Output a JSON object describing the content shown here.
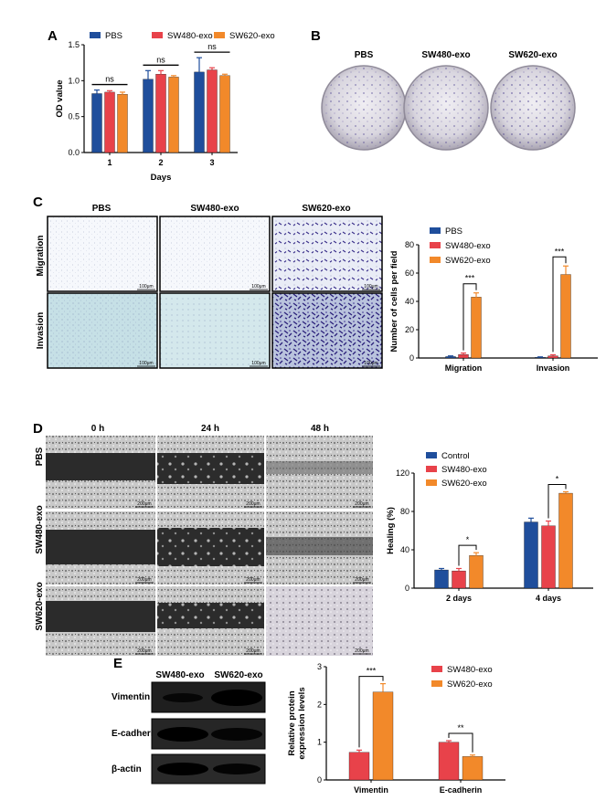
{
  "colors": {
    "blue": "#1f4e9c",
    "red": "#e8424a",
    "orange": "#f2892a",
    "ink": "#000000"
  },
  "panels": {
    "a": "A",
    "b": "B",
    "c": "C",
    "d": "D",
    "e": "E"
  },
  "chart_data": [
    {
      "panel": "A",
      "type": "bar",
      "categories": [
        "1",
        "2",
        "3"
      ],
      "series": [
        {
          "name": "PBS",
          "values": [
            0.82,
            1.02,
            1.12
          ],
          "err": [
            0.05,
            0.12,
            0.2
          ]
        },
        {
          "name": "SW480-exo",
          "values": [
            0.84,
            1.09,
            1.15
          ],
          "err": [
            0.02,
            0.05,
            0.03
          ]
        },
        {
          "name": "SW620-exo",
          "values": [
            0.81,
            1.05,
            1.07
          ],
          "err": [
            0.03,
            0.02,
            0.02
          ]
        }
      ],
      "xlabel": "Days",
      "ylabel": "OD value",
      "ylim": [
        0,
        1.5
      ],
      "yticks": [
        "0.0",
        "0.5",
        "1.0",
        "1.5"
      ],
      "sig": [
        "ns",
        "ns",
        "ns"
      ],
      "legend": "top"
    },
    {
      "panel": "C",
      "type": "bar",
      "categories": [
        "Migration",
        "Invasion"
      ],
      "series": [
        {
          "name": "PBS",
          "values": [
            1,
            0.5
          ],
          "err": [
            0.5,
            0.3
          ]
        },
        {
          "name": "SW480-exo",
          "values": [
            2.5,
            1.5
          ],
          "err": [
            1,
            0.8
          ]
        },
        {
          "name": "SW620-exo",
          "values": [
            43,
            59
          ],
          "err": [
            3,
            6
          ]
        }
      ],
      "ylabel": "Number of cells per field",
      "ylim": [
        0,
        80
      ],
      "yticks": [
        "0",
        "20",
        "40",
        "60",
        "80"
      ],
      "sig": [
        "***",
        "***"
      ],
      "legend": "top-left"
    },
    {
      "panel": "D",
      "type": "bar",
      "categories": [
        "2 days",
        "4 days"
      ],
      "series": [
        {
          "name": "Control",
          "values": [
            19,
            69
          ],
          "err": [
            1.5,
            4
          ]
        },
        {
          "name": "SW480-exo",
          "values": [
            18,
            65
          ],
          "err": [
            2.5,
            5
          ]
        },
        {
          "name": "SW620-exo",
          "values": [
            34,
            99
          ],
          "err": [
            3,
            1.5
          ]
        }
      ],
      "ylabel": "Healing (%)",
      "ylim": [
        0,
        120
      ],
      "yticks": [
        "0",
        "40",
        "80",
        "120"
      ],
      "sig": [
        "*",
        "*"
      ],
      "legend": "top-left"
    },
    {
      "panel": "E",
      "type": "bar",
      "categories": [
        "Vimentin",
        "E-cadherin"
      ],
      "series": [
        {
          "name": "SW480-exo",
          "values": [
            0.73,
            1.0
          ],
          "err": [
            0.06,
            0.04
          ]
        },
        {
          "name": "SW620-exo",
          "values": [
            2.33,
            0.62
          ],
          "err": [
            0.22,
            0.04
          ]
        }
      ],
      "ylabel": "Relative protein expression levels",
      "ylim": [
        0,
        3
      ],
      "yticks": [
        "0",
        "1",
        "2",
        "3"
      ],
      "sig": [
        "***",
        "**"
      ],
      "legend": "top-right"
    }
  ],
  "b_labels": [
    "PBS",
    "SW480-exo",
    "SW620-exo"
  ],
  "c_cols": [
    "PBS",
    "SW480-exo",
    "SW620-exo"
  ],
  "c_rows": [
    "Migration",
    "Invasion"
  ],
  "d_cols": [
    "0 h",
    "24 h",
    "48 h"
  ],
  "d_rows": [
    "PBS",
    "SW480-exo",
    "SW620-exo"
  ],
  "scale_c": "100μm",
  "scale_d": "200μm",
  "e_cols": [
    "SW480-exo",
    "SW620-exo"
  ],
  "e_rows": [
    "Vimentin",
    "E-cadherin",
    "β-actin"
  ]
}
